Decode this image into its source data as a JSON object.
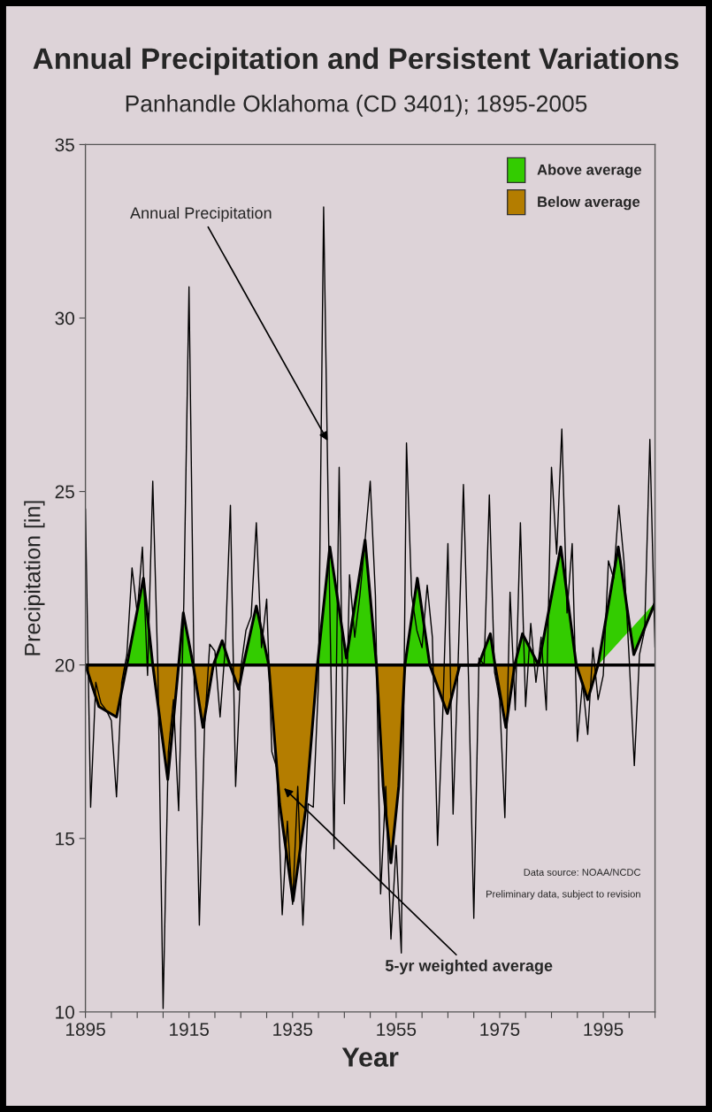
{
  "chart_data": {
    "type": "line",
    "title": "Annual Precipitation and Persistent Variations",
    "subtitle": "Panhandle Oklahoma (CD 3401); 1895-2005",
    "xlabel": "Year",
    "ylabel": "Precipitation [in]",
    "xlim": [
      1895,
      2005
    ],
    "ylim": [
      10,
      35
    ],
    "xticks": [
      {
        "value": 1895,
        "label": "1895"
      },
      {
        "value": 1900,
        "label": null
      },
      {
        "value": 1905,
        "label": null
      },
      {
        "value": 1910,
        "label": null
      },
      {
        "value": 1915,
        "label": "1915"
      },
      {
        "value": 1920,
        "label": null
      },
      {
        "value": 1925,
        "label": null
      },
      {
        "value": 1930,
        "label": null
      },
      {
        "value": 1935,
        "label": "1935"
      },
      {
        "value": 1940,
        "label": null
      },
      {
        "value": 1945,
        "label": null
      },
      {
        "value": 1950,
        "label": null
      },
      {
        "value": 1955,
        "label": "1955"
      },
      {
        "value": 1960,
        "label": null
      },
      {
        "value": 1965,
        "label": null
      },
      {
        "value": 1970,
        "label": null
      },
      {
        "value": 1975,
        "label": "1975"
      },
      {
        "value": 1980,
        "label": null
      },
      {
        "value": 1985,
        "label": null
      },
      {
        "value": 1990,
        "label": null
      },
      {
        "value": 1995,
        "label": "1995"
      },
      {
        "value": 2000,
        "label": null
      },
      {
        "value": 2005,
        "label": null
      }
    ],
    "yticks": [
      10,
      15,
      20,
      25,
      30,
      35
    ],
    "grid": false,
    "legend": "top right",
    "ref_lines": [
      {
        "axis": "y",
        "value": 20,
        "color": "#000000"
      }
    ],
    "annotations": [
      {
        "text": "Annual Precipitation",
        "x": 1942,
        "y": 26.4
      },
      {
        "text": "5-yr weighted average",
        "x": 1933,
        "y": 16.5
      },
      "Data source: NOAA/NCDC",
      "Preliminary data, subject to revision"
    ],
    "series": [
      {
        "color": "#000000",
        "x": [
          1895,
          1896,
          1897,
          1898,
          1899,
          1900,
          1901,
          1902,
          1903,
          1904,
          1905,
          1906,
          1907,
          1908,
          1909,
          1910,
          1911,
          1912,
          1913,
          1914,
          1915,
          1916,
          1917,
          1918,
          1919,
          1920,
          1921,
          1922,
          1923,
          1924,
          1925,
          1926,
          1927,
          1928,
          1929,
          1930,
          1931,
          1932,
          1933,
          1934,
          1935,
          1936,
          1937,
          1938,
          1939,
          1940,
          1941,
          1942,
          1943,
          1944,
          1945,
          1946,
          1947,
          1948,
          1949,
          1950,
          1951,
          1952,
          1953,
          1954,
          1955,
          1956,
          1957,
          1958,
          1959,
          1960,
          1961,
          1962,
          1963,
          1964,
          1965,
          1966,
          1967,
          1968,
          1969,
          1970,
          1971,
          1972,
          1973,
          1974,
          1975,
          1976,
          1977,
          1978,
          1979,
          1980,
          1981,
          1982,
          1983,
          1984,
          1985,
          1986,
          1987,
          1988,
          1989,
          1990,
          1991,
          1992,
          1993,
          1994,
          1995,
          1996,
          1997,
          1998,
          1999,
          2000,
          2001,
          2002,
          2003,
          2004,
          2005
        ],
        "values": [
          24.5,
          15.9,
          19.5,
          18.9,
          18.7,
          18.4,
          16.2,
          19.5,
          20.3,
          22.8,
          21.5,
          23.4,
          19.7,
          25.3,
          19.8,
          10.1,
          17.5,
          19.0,
          15.8,
          21.8,
          30.9,
          19.5,
          12.5,
          18.2,
          20.6,
          20.4,
          18.5,
          20.5,
          24.6,
          16.5,
          19.9,
          21.0,
          21.4,
          24.1,
          20.5,
          21.9,
          17.5,
          17.0,
          12.8,
          15.5,
          13.1,
          16.5,
          12.5,
          16.0,
          15.9,
          19.5,
          33.2,
          23.4,
          14.7,
          25.7,
          16.0,
          22.6,
          20.8,
          22.0,
          23.6,
          25.3,
          22.0,
          13.4,
          16.5,
          12.1,
          14.8,
          11.7,
          26.4,
          22.0,
          21.0,
          20.5,
          22.3,
          20.8,
          14.8,
          18.6,
          23.5,
          15.7,
          20.2,
          25.2,
          19.5,
          12.7,
          20.2,
          20.0,
          24.9,
          19.8,
          19.0,
          15.6,
          22.1,
          18.7,
          24.1,
          18.8,
          21.2,
          19.5,
          20.8,
          18.7,
          25.7,
          23.2,
          26.8,
          21.5,
          23.5,
          17.8,
          19.5,
          18.0,
          20.5,
          19.0,
          19.7,
          23.0,
          22.5,
          24.6,
          23.0,
          20.2,
          17.1,
          20.3,
          21.0,
          26.5,
          20.5
        ]
      },
      {
        "type": "area",
        "name": "Above average",
        "color": "#33cc00",
        "x": [
          1903,
          1906.2,
          1908,
          1910.9,
          1913,
          1913.9,
          1915.8,
          1917.7,
          1919.7,
          1921.4,
          1922.9,
          1924.6,
          1925.5,
          1928,
          1930.4,
          1932.5,
          1935.1,
          1937.5,
          1939.8,
          1942.2,
          1945.4,
          1949,
          1951.2,
          1952.5,
          1954,
          1955.5,
          1956.7,
          1959.1,
          1961.5,
          1964.9,
          1967.3,
          1970.9,
          1973.2,
          1974.1,
          1976.2,
          1977.9,
          1979.4,
          1982.5,
          1986.8,
          1989.8,
          1992,
          1994,
          1997.9,
          2000.9,
          2005
        ],
        "values": [
          20,
          22.5,
          20,
          null,
          20,
          21.5,
          20,
          null,
          20,
          20.7,
          20,
          null,
          20,
          21.7,
          20,
          null,
          null,
          null,
          20,
          23.4,
          20.2,
          23.6,
          20,
          null,
          null,
          null,
          20,
          22.5,
          20,
          null,
          20,
          20,
          20.9,
          20,
          null,
          20,
          20.9,
          20,
          23.4,
          20,
          null,
          20,
          23.4,
          20.3,
          21.8
        ]
      },
      {
        "type": "area",
        "name": "Below average",
        "color": "#b47d00",
        "x": [
          1895,
          1897.6,
          1901,
          1903,
          1906.2,
          1908,
          1910.9,
          1913,
          1913.9,
          1915.8,
          1917.7,
          1919.7,
          1921.4,
          1922.9,
          1924.6,
          1925.5,
          1928,
          1930.4,
          1932.5,
          1935.1,
          1937.5,
          1939.8,
          1942.2,
          1945.4,
          1949,
          1951.2,
          1952.5,
          1954,
          1955.5,
          1956.7,
          1959.1,
          1961.5,
          1964.9,
          1967.3,
          1970.9,
          1973.2,
          1974.1,
          1976.2,
          1977.9,
          1979.4,
          1982.5,
          1986.8,
          1989.8,
          1992,
          1994
        ],
        "values": [
          20,
          18.8,
          18.5,
          20,
          null,
          20,
          16.7,
          20,
          null,
          20,
          18.2,
          20,
          null,
          20,
          19.3,
          20,
          null,
          20,
          16.0,
          13.2,
          15.8,
          20,
          null,
          null,
          null,
          20,
          16.5,
          14.3,
          16.5,
          20,
          null,
          20,
          18.6,
          20,
          20,
          null,
          20,
          18.2,
          20,
          null,
          null,
          null,
          20,
          19.0,
          20
        ]
      }
    ]
  }
}
